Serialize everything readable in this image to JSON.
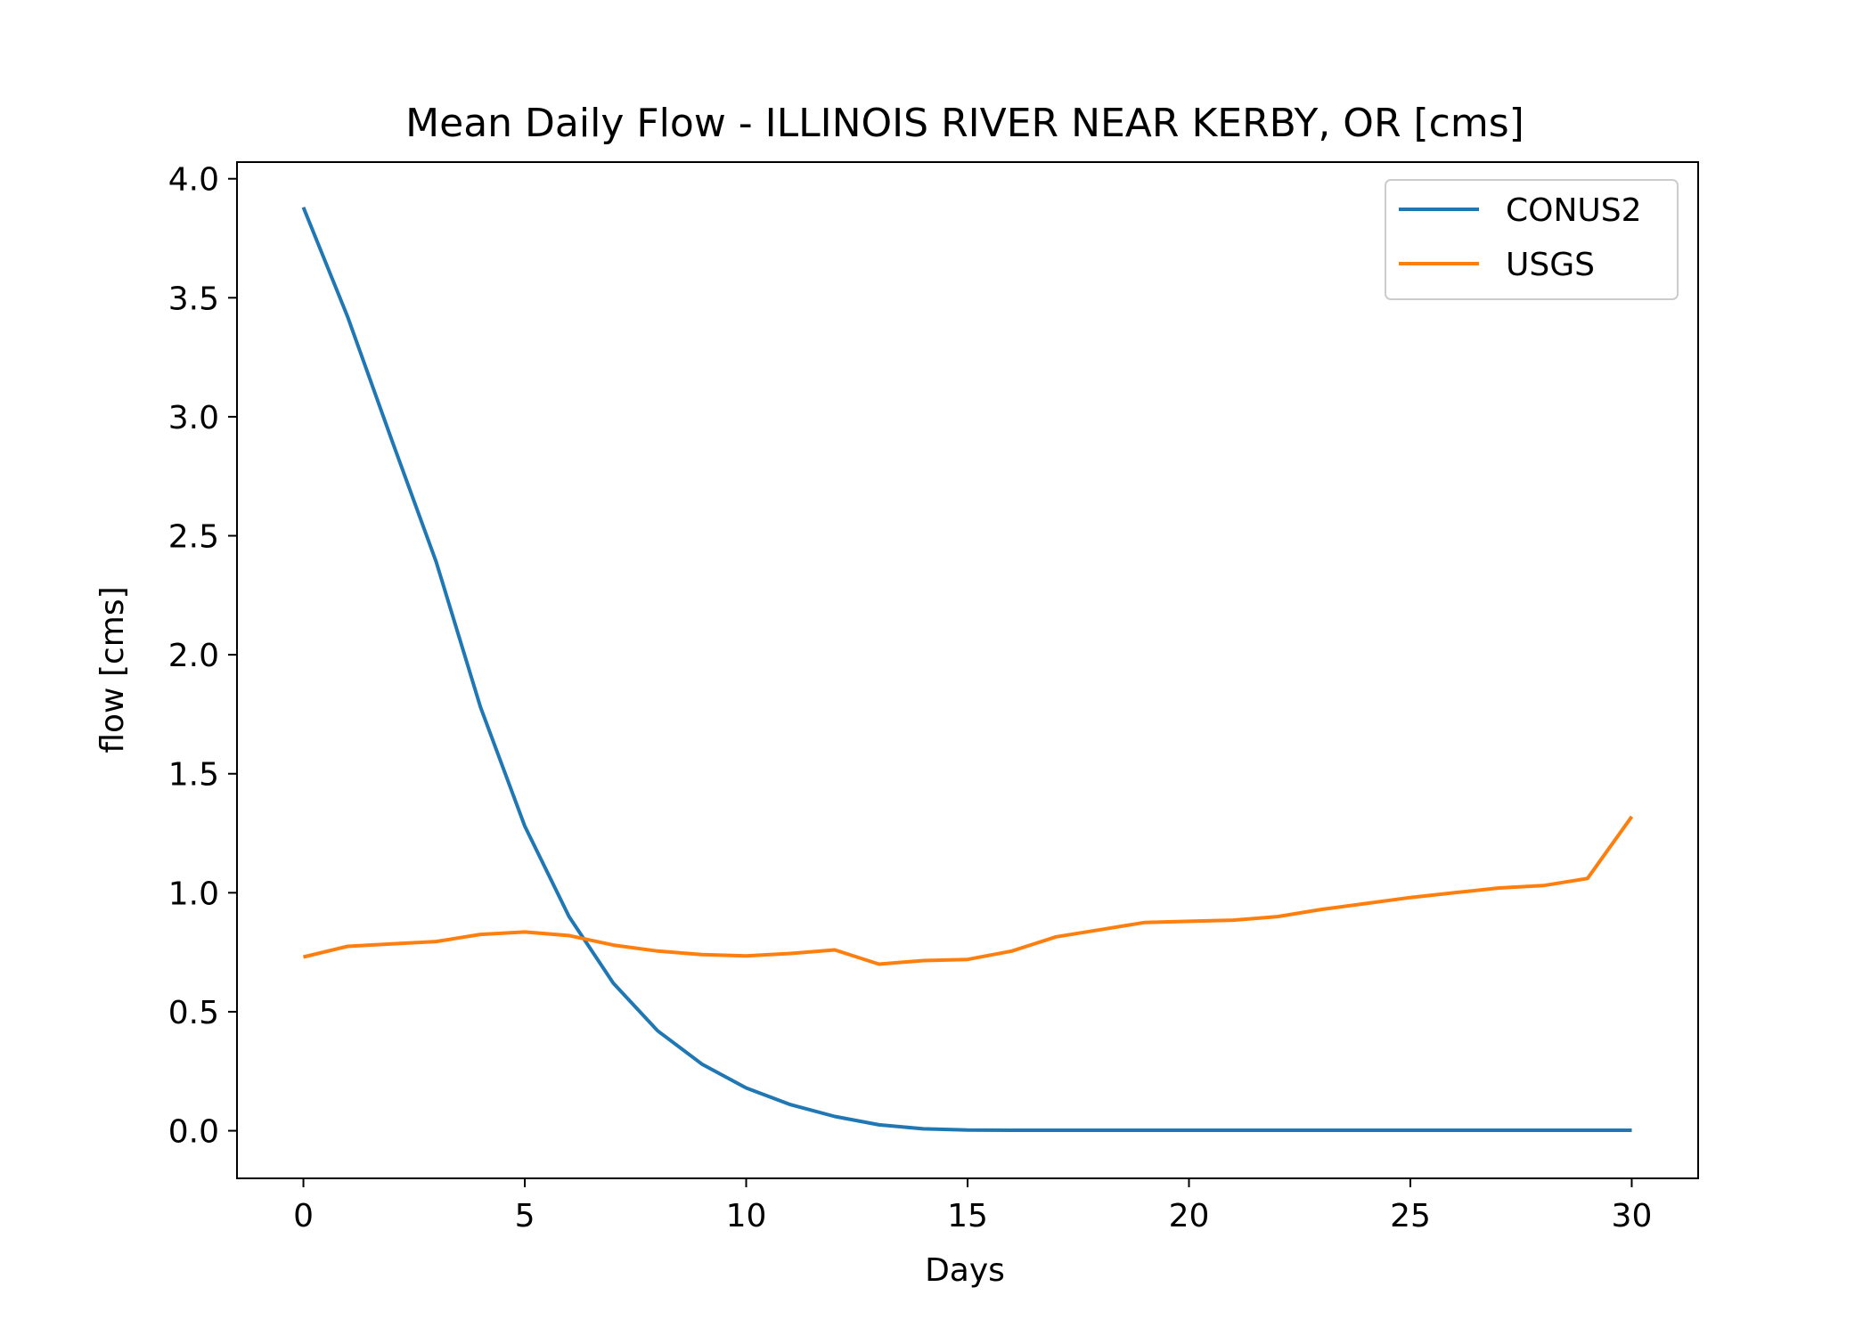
{
  "chart_data": {
    "type": "line",
    "title": "Mean Daily Flow - ILLINOIS RIVER NEAR KERBY, OR [cms]",
    "xlabel": "Days",
    "ylabel": "flow [cms]",
    "xlim": [
      -1.5,
      31.5
    ],
    "ylim": [
      -0.2,
      4.07
    ],
    "xticks": [
      0,
      5,
      10,
      15,
      20,
      25,
      30
    ],
    "xtick_labels": [
      "0",
      "5",
      "10",
      "15",
      "20",
      "25",
      "30"
    ],
    "yticks": [
      0.0,
      0.5,
      1.0,
      1.5,
      2.0,
      2.5,
      3.0,
      3.5,
      4.0
    ],
    "ytick_labels": [
      "0.0",
      "0.5",
      "1.0",
      "1.5",
      "2.0",
      "2.5",
      "3.0",
      "3.5",
      "4.0"
    ],
    "grid": false,
    "legend_position": "top-right",
    "x": [
      0,
      1,
      2,
      3,
      4,
      5,
      6,
      7,
      8,
      9,
      10,
      11,
      12,
      13,
      14,
      15,
      16,
      17,
      18,
      19,
      20,
      21,
      22,
      23,
      24,
      25,
      26,
      27,
      28,
      29,
      30
    ],
    "series": [
      {
        "name": "CONUS2",
        "color": "#1f77b4",
        "values": [
          3.88,
          3.42,
          2.9,
          2.39,
          1.78,
          1.28,
          0.9,
          0.62,
          0.42,
          0.28,
          0.18,
          0.11,
          0.06,
          0.025,
          0.008,
          0.003,
          0.002,
          0.002,
          0.002,
          0.002,
          0.002,
          0.002,
          0.002,
          0.002,
          0.002,
          0.002,
          0.002,
          0.002,
          0.002,
          0.002,
          0.002
        ]
      },
      {
        "name": "USGS",
        "color": "#ff7f0e",
        "values": [
          0.73,
          0.775,
          0.785,
          0.795,
          0.825,
          0.835,
          0.82,
          0.78,
          0.755,
          0.74,
          0.735,
          0.745,
          0.76,
          0.7,
          0.715,
          0.72,
          0.755,
          0.815,
          0.845,
          0.875,
          0.88,
          0.885,
          0.9,
          0.93,
          0.955,
          0.98,
          1.0,
          1.02,
          1.03,
          1.06,
          1.32
        ]
      }
    ]
  }
}
